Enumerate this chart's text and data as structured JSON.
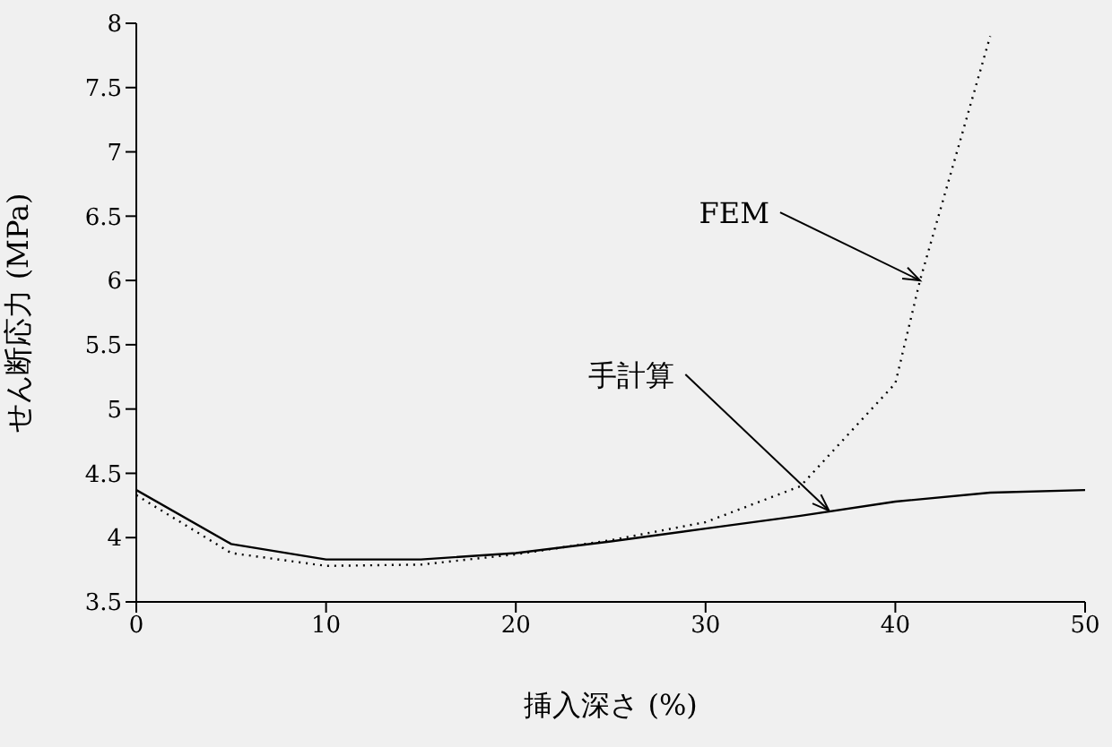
{
  "chart_data": {
    "type": "line",
    "xlabel": "挿入深さ (%)",
    "ylabel": "せん断応力 (MPa)",
    "x": [
      0,
      5,
      10,
      15,
      20,
      25,
      30,
      35,
      40,
      45,
      50
    ],
    "series": [
      {
        "color": "#000000",
        "line_style": "solid",
        "values": [
          4.37,
          3.95,
          3.83,
          3.83,
          3.88,
          3.97,
          4.07,
          4.17,
          4.28,
          4.35,
          4.37
        ]
      },
      {
        "color": "#000000",
        "line_style": "dotted",
        "x": [
          0,
          5,
          10,
          15,
          20,
          25,
          30,
          35,
          40,
          41.3,
          45
        ],
        "values": [
          4.33,
          3.88,
          3.78,
          3.79,
          3.87,
          3.98,
          4.12,
          4.4,
          5.2,
          6.0,
          7.9
        ]
      }
    ],
    "xlim": [
      0,
      50
    ],
    "xticks": [
      0,
      10,
      20,
      30,
      40,
      50
    ],
    "ylim": [
      3.5,
      8
    ],
    "yticks": [
      3.5,
      4,
      4.5,
      5,
      5.5,
      6,
      6.5,
      7,
      7.5,
      8
    ],
    "grid": false,
    "legend": false,
    "marker": "none",
    "annotations": [
      {
        "text": "FEM",
        "x": 41.3,
        "y": 6.0
      },
      {
        "text": "手計算",
        "x": 36.5,
        "y": 4.21
      }
    ]
  }
}
